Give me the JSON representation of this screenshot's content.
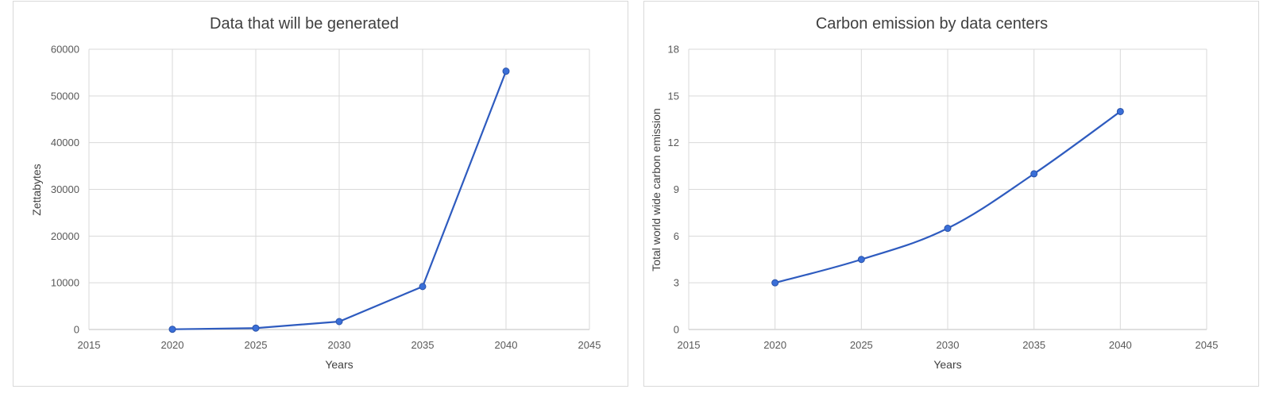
{
  "chart_data": [
    {
      "type": "line",
      "title": "Data that will be generated",
      "xlabel": "Years",
      "ylabel": "Zettabytes",
      "x": [
        2020,
        2025,
        2030,
        2035,
        2040
      ],
      "series": [
        {
          "values": [
            50,
            300,
            1700,
            9200,
            55300
          ]
        }
      ],
      "xlim": [
        2015,
        2045
      ],
      "ylim": [
        0,
        60000
      ],
      "xticks": [
        "2015",
        "2020",
        "2025",
        "2030",
        "2035",
        "2040",
        "2045"
      ],
      "yticks": [
        "0",
        "10000",
        "20000",
        "30000",
        "40000",
        "50000",
        "60000"
      ],
      "grid": true,
      "smooth": false,
      "colors": {
        "line": "#2e5bbf",
        "marker": "#3a6fd8"
      }
    },
    {
      "type": "line",
      "title": "Carbon emission by data centers",
      "xlabel": "Years",
      "ylabel": "Total world wide carbon emission",
      "x": [
        2020,
        2025,
        2030,
        2035,
        2040
      ],
      "series": [
        {
          "values": [
            3,
            4.5,
            6.5,
            10,
            14
          ]
        }
      ],
      "xlim": [
        2015,
        2045
      ],
      "ylim": [
        0,
        18
      ],
      "xticks": [
        "2015",
        "2020",
        "2025",
        "2030",
        "2035",
        "2040",
        "2045"
      ],
      "yticks": [
        "0",
        "3",
        "6",
        "9",
        "12",
        "15",
        "18"
      ],
      "grid": true,
      "smooth": true,
      "colors": {
        "line": "#2e5bbf",
        "marker": "#3a6fd8"
      }
    }
  ]
}
